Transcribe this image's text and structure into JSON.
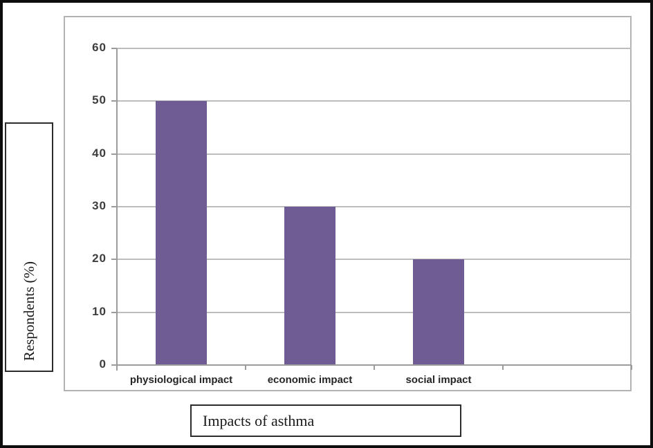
{
  "chart_data": {
    "type": "bar",
    "categories": [
      "physiological impact",
      "economic impact",
      "social impact"
    ],
    "values": [
      50,
      30,
      20
    ],
    "title": "",
    "xlabel": "Impacts of asthma",
    "ylabel": "Respondents (%)",
    "ylim": [
      0,
      60
    ],
    "yticks": [
      0,
      10,
      20,
      30,
      40,
      50,
      60
    ],
    "grid": true,
    "legend_position": "none",
    "num_category_slots": 4,
    "bar_color": "#705C95",
    "gridline_color": "#bdbdbd",
    "axis_color": "#9b9b9b",
    "tick_label_color": "#3d3d3d",
    "category_label_color": "#262626",
    "frame_color": "#0d0d0d",
    "panel_border_color": "#b3b3b3"
  }
}
